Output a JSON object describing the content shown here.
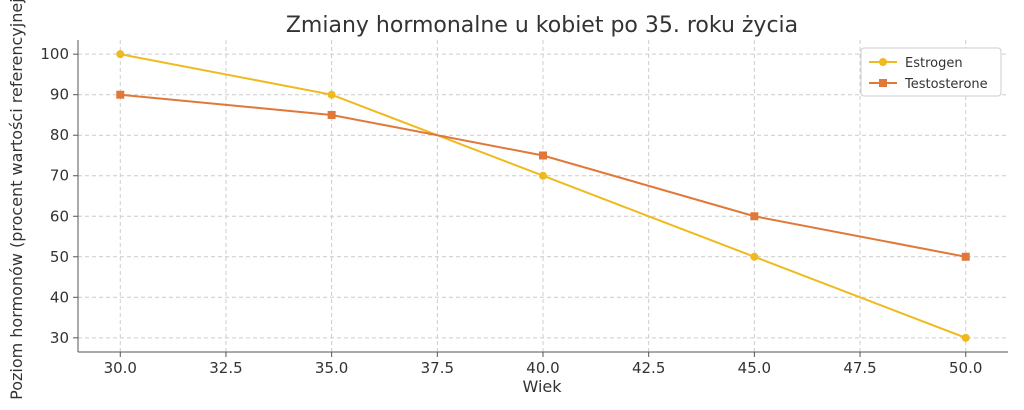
{
  "chart_data": {
    "type": "line",
    "title": "Zmiany hormonalne u kobiet po 35. roku życia",
    "xlabel": "Wiek",
    "ylabel": "Poziom hormonów (procent wartości referencyjnej)",
    "x": [
      30,
      35,
      40,
      45,
      50
    ],
    "xlim": [
      29,
      51
    ],
    "ylim": [
      26.5,
      103.5
    ],
    "x_ticks": [
      30.0,
      32.5,
      35.0,
      37.5,
      40.0,
      42.5,
      45.0,
      47.5,
      50.0
    ],
    "x_tick_labels": [
      "30.0",
      "32.5",
      "35.0",
      "37.5",
      "40.0",
      "42.5",
      "45.0",
      "47.5",
      "50.0"
    ],
    "y_ticks": [
      30,
      40,
      50,
      60,
      70,
      80,
      90,
      100
    ],
    "y_tick_labels": [
      "30",
      "40",
      "50",
      "60",
      "70",
      "80",
      "90",
      "100"
    ],
    "grid": true,
    "legend_position": "top-right",
    "series": [
      {
        "name": "Estrogen",
        "values": [
          100,
          90,
          70,
          50,
          30
        ],
        "color": "#F0B91E",
        "marker": "circle"
      },
      {
        "name": "Testosterone",
        "values": [
          90,
          85,
          75,
          60,
          50
        ],
        "color": "#E0783A",
        "marker": "square"
      }
    ]
  }
}
